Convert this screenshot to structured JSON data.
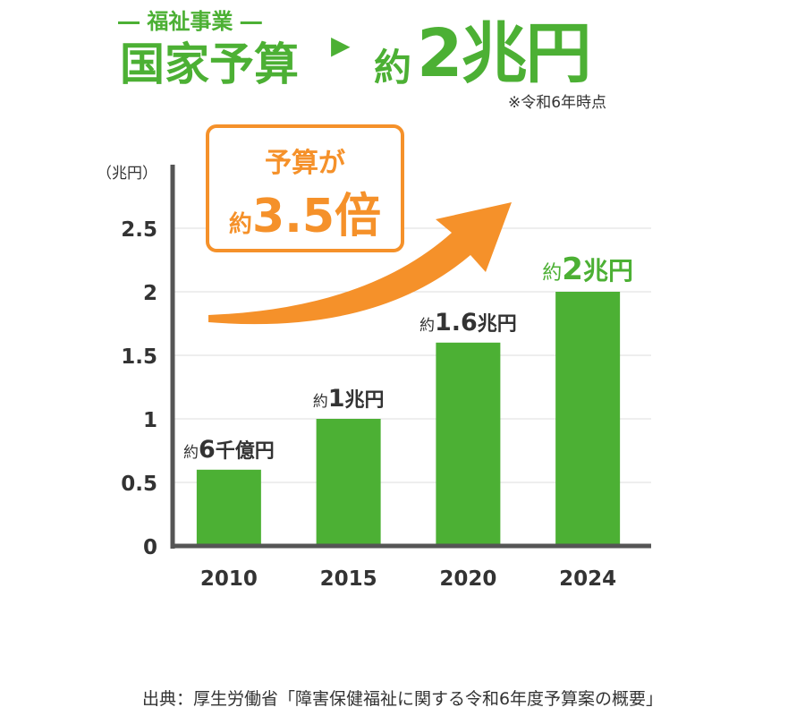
{
  "header": {
    "category": "― 福祉事業 ―",
    "budget_label": "国家予算",
    "arrow_glyph": "▶",
    "approx": "約",
    "amount": "2兆円",
    "note": "※令和6年時点"
  },
  "callout": {
    "line1": "予算が",
    "approx": "約",
    "multiplier": "3.5倍"
  },
  "source": "出典：厚生労働省「障害保健福祉に関する令和6年度予算案の概要」",
  "colors": {
    "green": "#4cb034",
    "orange": "#f5912a",
    "axis": "#555555",
    "grid": "#dddddd",
    "text": "#333333"
  },
  "chart_data": {
    "type": "bar",
    "ylabel": "（兆円）",
    "ylim": [
      0,
      2.5
    ],
    "yticks": [
      {
        "value": 0,
        "label": "0"
      },
      {
        "value": 0.5,
        "label": "0.5"
      },
      {
        "value": 1,
        "label": "1"
      },
      {
        "value": 1.5,
        "label": "1.5"
      },
      {
        "value": 2,
        "label": "2"
      },
      {
        "value": 2.5,
        "label": "2.5"
      }
    ],
    "grid": true,
    "categories": [
      "2010",
      "2015",
      "2020",
      "2024"
    ],
    "values": [
      0.6,
      1,
      1.6,
      2
    ],
    "labels": [
      {
        "prefix": "約",
        "value": "6",
        "unit": "千億円"
      },
      {
        "prefix": "約",
        "value": "1",
        "unit": "兆円"
      },
      {
        "prefix": "約",
        "value": "1.6",
        "unit": "兆円"
      },
      {
        "prefix": "約",
        "value": "2",
        "unit": "兆円"
      }
    ]
  }
}
